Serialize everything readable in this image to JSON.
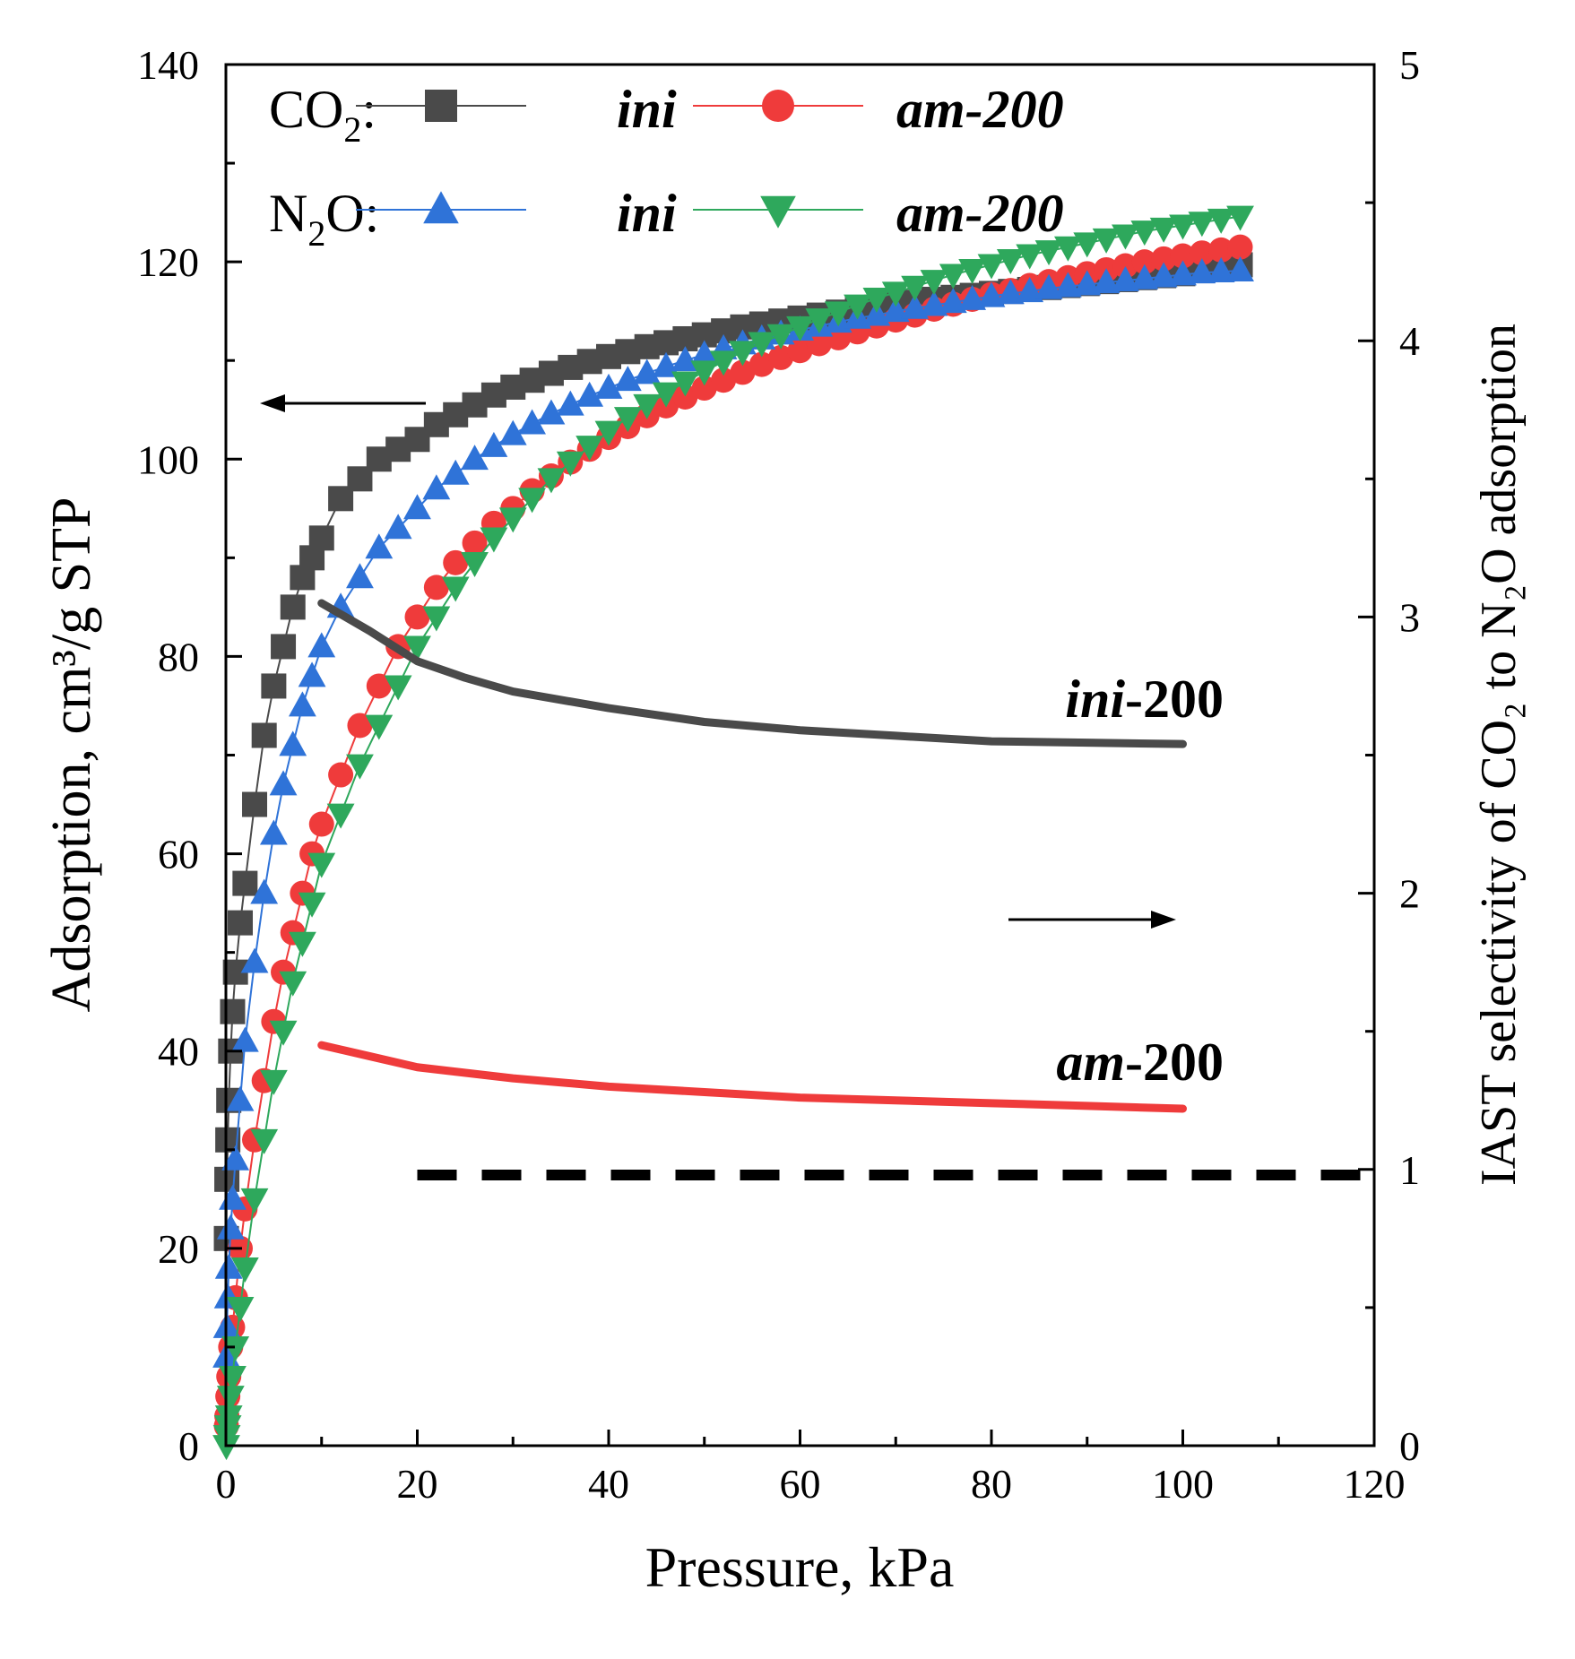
{
  "chart_data": {
    "type": "line",
    "xlabel": "Pressure, kPa",
    "ylabel_left": "Adsorption, cm³/g STP",
    "ylabel_right": "IAST selectivity of CO₂ to N₂O adsorption",
    "xlim": [
      0,
      120
    ],
    "ylim_left": [
      0,
      140
    ],
    "ylim_right": [
      0,
      5
    ],
    "x_ticks": [
      "0",
      "20",
      "40",
      "60",
      "80",
      "100",
      "120"
    ],
    "y_left_ticks": [
      "0",
      "20",
      "40",
      "60",
      "80",
      "100",
      "120",
      "140"
    ],
    "y_right_ticks": [
      "0",
      "1",
      "2",
      "3",
      "4",
      "5"
    ],
    "grid": false,
    "legend": {
      "co2_label": "CO",
      "co2_sub": "2",
      "n2o_label": "N",
      "n2o_sub": "2",
      "n2o_tail": "O:",
      "colon": ":",
      "ini": "ini",
      "am200": "am-200"
    },
    "annotations": {
      "ini200_italic": "ini",
      "ini200_rest": "-200",
      "am200_italic": "am",
      "am200_rest": "-200"
    },
    "isotherm_x": [
      0.05,
      0.1,
      0.2,
      0.3,
      0.5,
      0.7,
      1,
      1.5,
      2,
      3,
      4,
      5,
      6,
      7,
      8,
      9,
      10,
      12,
      14,
      16,
      18,
      20,
      22,
      24,
      26,
      28,
      30,
      32,
      34,
      36,
      38,
      40,
      42,
      44,
      46,
      48,
      50,
      52,
      54,
      56,
      58,
      60,
      62,
      64,
      66,
      68,
      70,
      72,
      74,
      76,
      78,
      80,
      82,
      84,
      86,
      88,
      90,
      92,
      94,
      96,
      98,
      100,
      102,
      104,
      106
    ],
    "series": [
      {
        "name": "CO2 ini",
        "axis": "left",
        "color": "#4a4a4a",
        "marker": "square",
        "values": [
          21,
          27,
          31,
          35,
          40,
          44,
          48,
          53,
          57,
          65,
          72,
          77,
          81,
          85,
          88,
          90,
          92,
          96,
          98,
          100,
          101,
          102,
          103.5,
          104.5,
          105.5,
          106.5,
          107.3,
          108,
          108.7,
          109.3,
          109.9,
          110.4,
          110.9,
          111.4,
          111.8,
          112.2,
          112.6,
          113,
          113.4,
          113.7,
          114,
          114.3,
          114.6,
          114.9,
          115.2,
          115.4,
          115.7,
          115.9,
          116.2,
          116.4,
          116.6,
          116.8,
          117,
          117.2,
          117.4,
          117.6,
          117.8,
          118,
          118.2,
          118.4,
          118.6,
          118.8,
          119.1,
          119.4,
          119.7
        ]
      },
      {
        "name": "CO2 am-200",
        "axis": "left",
        "color": "#ef3b3b",
        "marker": "circle",
        "values": [
          2,
          3,
          5,
          7,
          10,
          12,
          15,
          20,
          24,
          31,
          37,
          43,
          48,
          52,
          56,
          60,
          63,
          68,
          73,
          77,
          81,
          84,
          87,
          89.5,
          91.5,
          93.5,
          95,
          96.8,
          98.3,
          99.7,
          101,
          102.2,
          103.3,
          104.4,
          105.4,
          106.3,
          107.2,
          108,
          108.8,
          109.6,
          110.3,
          111,
          111.7,
          112.3,
          112.9,
          113.5,
          114.1,
          114.6,
          115.2,
          115.7,
          116.2,
          116.7,
          117.1,
          117.6,
          118,
          118.4,
          118.8,
          119.2,
          119.6,
          120,
          120.3,
          120.6,
          120.9,
          121.2,
          121.5
        ]
      },
      {
        "name": "N2O ini",
        "axis": "left",
        "color": "#2f73d8",
        "marker": "triangle-up",
        "values": [
          9,
          12,
          15,
          18,
          22,
          25,
          29,
          35,
          41,
          49,
          56,
          62,
          67,
          71,
          75,
          78,
          81,
          85,
          88,
          91,
          93,
          95,
          97,
          98.5,
          100,
          101.3,
          102.5,
          103.6,
          104.6,
          105.5,
          106.4,
          107.2,
          108,
          108.7,
          109.4,
          110,
          110.6,
          111.2,
          111.7,
          112.2,
          112.7,
          113.1,
          113.5,
          113.9,
          114.3,
          114.6,
          115,
          115.3,
          115.6,
          115.9,
          116.2,
          116.5,
          116.8,
          117,
          117.3,
          117.5,
          117.7,
          117.9,
          118.1,
          118.3,
          118.5,
          118.7,
          118.9,
          119,
          119.1
        ]
      },
      {
        "name": "N2O am-200",
        "axis": "left",
        "color": "#2ea85c",
        "marker": "triangle-down",
        "values": [
          0,
          1,
          2,
          3,
          5,
          7,
          10,
          14,
          18,
          25,
          31,
          37,
          42,
          47,
          51,
          55,
          59,
          64,
          69,
          73,
          77,
          81,
          84,
          87,
          89.5,
          92,
          94,
          96,
          98,
          99.7,
          101.3,
          102.8,
          104.2,
          105.5,
          106.7,
          107.8,
          108.9,
          109.9,
          110.9,
          111.8,
          112.6,
          113.4,
          114.2,
          114.9,
          115.6,
          116.3,
          116.9,
          117.5,
          118.1,
          118.7,
          119.2,
          119.7,
          120.2,
          120.7,
          121.1,
          121.5,
          121.9,
          122.3,
          122.7,
          123.1,
          123.4,
          123.7,
          124,
          124.3,
          124.6
        ]
      },
      {
        "name": "ini-200",
        "axis": "right",
        "color": "#4a4a4a",
        "marker": "none",
        "x": [
          10,
          15,
          20,
          25,
          30,
          40,
          50,
          60,
          70,
          80,
          90,
          100
        ],
        "values": [
          3.05,
          2.95,
          2.84,
          2.78,
          2.73,
          2.67,
          2.62,
          2.59,
          2.57,
          2.55,
          2.545,
          2.54
        ]
      },
      {
        "name": "am-200",
        "axis": "right",
        "color": "#ef3b3b",
        "marker": "none",
        "x": [
          10,
          15,
          20,
          30,
          40,
          50,
          60,
          70,
          80,
          90,
          100
        ],
        "values": [
          1.45,
          1.41,
          1.37,
          1.33,
          1.3,
          1.28,
          1.26,
          1.25,
          1.24,
          1.23,
          1.22
        ]
      },
      {
        "name": "selectivity = 1",
        "axis": "right",
        "color": "#000000",
        "marker": "none",
        "style": "dashed",
        "x": [
          20,
          120
        ],
        "values": [
          0.98,
          0.98
        ]
      }
    ]
  }
}
